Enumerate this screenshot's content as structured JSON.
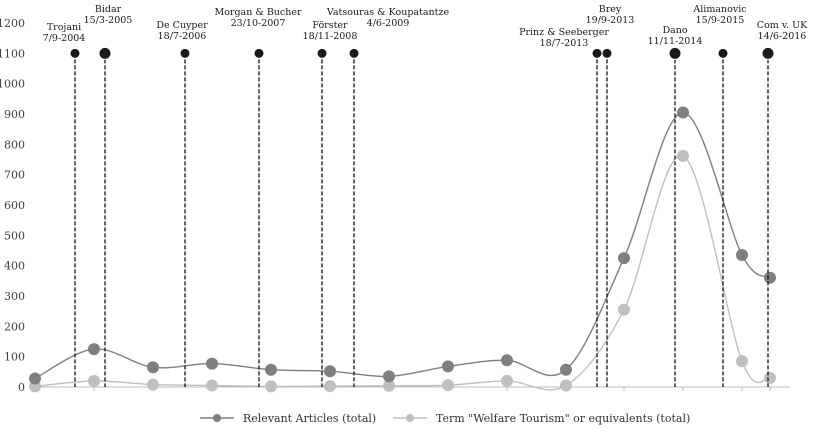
{
  "chart_data": {
    "type": "line",
    "title": "",
    "xlabel": "",
    "ylabel": "",
    "ylim": [
      0,
      1200
    ],
    "yticks": [
      0,
      100,
      200,
      300,
      400,
      500,
      600,
      700,
      800,
      900,
      1000,
      1100,
      1200
    ],
    "grid": false,
    "legend_position": "bottom",
    "series": [
      {
        "name": "Relevant Articles (total)",
        "color": "#7f7f7f",
        "values": [
          28,
          125,
          65,
          77,
          57,
          52,
          35,
          68,
          88,
          57,
          425,
          905,
          435,
          360
        ]
      },
      {
        "name": "Term \"Welfare Tourism\" or equivalents (total)",
        "color": "#bfbfbf",
        "values": [
          2,
          20,
          8,
          5,
          2,
          3,
          4,
          6,
          20,
          5,
          255,
          762,
          85,
          30
        ]
      }
    ],
    "events": [
      {
        "case": "Trojani",
        "date": "7/9-2004",
        "marker": "small"
      },
      {
        "case": "Bidar",
        "date": "15/3-2005",
        "marker": "large"
      },
      {
        "case": "De Cuyper",
        "date": "18/7-2006",
        "marker": "small"
      },
      {
        "case": "Morgan & Bucher",
        "date": "23/10-2007",
        "marker": "small"
      },
      {
        "case": "Förster",
        "date": "18/11-2008",
        "marker": "small"
      },
      {
        "case": "Vatsouras & Koupatantze",
        "date": "4/6-2009",
        "marker": "small"
      },
      {
        "case": "Prinz & Seeberger",
        "date": "18/7-2013",
        "marker": "small"
      },
      {
        "case": "Brey",
        "date": "19/9-2013",
        "marker": "small"
      },
      {
        "case": "Dano",
        "date": "11/11-2014",
        "marker": "large"
      },
      {
        "case": "Alimanovic",
        "date": "15/9-2015",
        "marker": "small"
      },
      {
        "case": "Com v. UK",
        "date": "14/6-2016",
        "marker": "large"
      }
    ],
    "event_value": 1100
  }
}
